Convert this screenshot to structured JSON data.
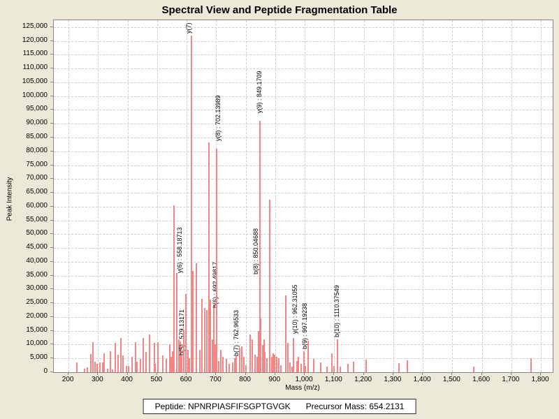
{
  "title": "Spectral View and Peptide Fragmentation Table",
  "footer": {
    "peptide_text": "Peptide: NPNRPIASFIFSGPTGVGK",
    "precursor_text": "Precursor Mass: 654.2131"
  },
  "colors": {
    "background": "#ece9d8",
    "plot_background": "#ffffff",
    "grid": "#cdcdcd",
    "bar": "#f58585",
    "axis_border": "#848484",
    "text": "#000000"
  },
  "chart_data": {
    "type": "bar",
    "title": "Spectral View and Peptide Fragmentation Table",
    "xlabel": "Mass (m/z)",
    "ylabel": "Peak Intensity",
    "xlim": [
      150,
      1840
    ],
    "ylim": [
      0,
      127500
    ],
    "grid": true,
    "x_ticks": {
      "values": [
        200,
        300,
        400,
        500,
        600,
        700,
        800,
        900,
        1000,
        1100,
        1200,
        1300,
        1400,
        1500,
        1600,
        1700,
        1800
      ],
      "labels": [
        "200",
        "300",
        "400",
        "500",
        "600",
        "700",
        "800",
        "900",
        "1,000",
        "1,100",
        "1,200",
        "1,300",
        "1,400",
        "1,500",
        "1,600",
        "1,700",
        "1,800"
      ]
    },
    "y_ticks": {
      "values": [
        0,
        5000,
        10000,
        15000,
        20000,
        25000,
        30000,
        35000,
        40000,
        45000,
        50000,
        55000,
        60000,
        65000,
        70000,
        75000,
        80000,
        85000,
        90000,
        95000,
        100000,
        105000,
        110000,
        115000,
        120000,
        125000
      ],
      "labels": [
        "0",
        "5,000",
        "10,000",
        "15,000",
        "20,000",
        "25,000",
        "30,000",
        "35,000",
        "40,000",
        "45,000",
        "50,000",
        "55,000",
        "60,000",
        "65,000",
        "70,000",
        "75,000",
        "80,000",
        "85,000",
        "90,000",
        "95,000",
        "100,000",
        "105,000",
        "110,000",
        "115,000",
        "120,000",
        "125,000"
      ]
    },
    "annotated_peaks": [
      {
        "mz": 558.18713,
        "intensity": 60500,
        "label": "y(6) : 558.18713"
      },
      {
        "mz": 579.13171,
        "intensity": 11000,
        "label": "b(5) : 579.13171"
      },
      {
        "mz": 615.35,
        "intensity": 122000,
        "label": "y(7) :"
      },
      {
        "mz": 692.49817,
        "intensity": 24500,
        "label": "b(6) : 692.49817"
      },
      {
        "mz": 702.13989,
        "intensity": 81000,
        "label": "y(8) : 702.13989"
      },
      {
        "mz": 762.96533,
        "intensity": 5000,
        "label": "b(7) : 762.96533"
      },
      {
        "mz": 849.1709,
        "intensity": 91000,
        "label": "y(9) : 849.1709"
      },
      {
        "mz": 850.04688,
        "intensity": 19500,
        "label": "b(8) : 850.04688"
      },
      {
        "mz": 962.31055,
        "intensity": 12400,
        "label": "y(10) : 962.31055"
      },
      {
        "mz": 997.19238,
        "intensity": 7600,
        "label": "b(9) : 997.19238"
      },
      {
        "mz": 1110.37549,
        "intensity": 12000,
        "label": "b(10) : 1110.37549"
      }
    ],
    "peaks": [
      {
        "mz": 228,
        "i": 3500
      },
      {
        "mz": 254,
        "i": 1300
      },
      {
        "mz": 264,
        "i": 1800
      },
      {
        "mz": 276,
        "i": 6600
      },
      {
        "mz": 283,
        "i": 11000
      },
      {
        "mz": 290,
        "i": 3800
      },
      {
        "mz": 297,
        "i": 3000
      },
      {
        "mz": 307,
        "i": 3500
      },
      {
        "mz": 316,
        "i": 3500
      },
      {
        "mz": 321,
        "i": 6800
      },
      {
        "mz": 333,
        "i": 1300
      },
      {
        "mz": 342,
        "i": 7600
      },
      {
        "mz": 349,
        "i": 900
      },
      {
        "mz": 359,
        "i": 10600
      },
      {
        "mz": 368,
        "i": 6300
      },
      {
        "mz": 378,
        "i": 12400
      },
      {
        "mz": 385,
        "i": 6000
      },
      {
        "mz": 396,
        "i": 2300
      },
      {
        "mz": 404,
        "i": 2300
      },
      {
        "mz": 415,
        "i": 5600
      },
      {
        "mz": 427,
        "i": 11000
      },
      {
        "mz": 432,
        "i": 3800
      },
      {
        "mz": 444,
        "i": 4800
      },
      {
        "mz": 453,
        "i": 12400
      },
      {
        "mz": 462,
        "i": 7300
      },
      {
        "mz": 475,
        "i": 13700
      },
      {
        "mz": 490,
        "i": 10600
      },
      {
        "mz": 494,
        "i": 3000
      },
      {
        "mz": 503,
        "i": 11000
      },
      {
        "mz": 519,
        "i": 6000
      },
      {
        "mz": 531,
        "i": 4800
      },
      {
        "mz": 543,
        "i": 10000
      },
      {
        "mz": 548,
        "i": 5500
      },
      {
        "mz": 553,
        "i": 7500
      },
      {
        "mz": 558.18713,
        "i": 60500,
        "label": "y(6) : 558.18713",
        "dx": 3,
        "dy": 100
      },
      {
        "mz": 567,
        "i": 36000
      },
      {
        "mz": 574,
        "i": 12000
      },
      {
        "mz": 579.13171,
        "i": 11000,
        "label": "b(5) : 579.13171",
        "dx": -3,
        "dy": 22
      },
      {
        "mz": 584,
        "i": 6000
      },
      {
        "mz": 590,
        "i": 15200
      },
      {
        "mz": 598,
        "i": 28300
      },
      {
        "mz": 605,
        "i": 8000
      },
      {
        "mz": 610,
        "i": 5000
      },
      {
        "mz": 615.35,
        "i": 122000,
        "label": "y(7) :",
        "dx": -9,
        "dy": 0
      },
      {
        "mz": 622,
        "i": 36700
      },
      {
        "mz": 633,
        "i": 39500
      },
      {
        "mz": 645,
        "i": 8000
      },
      {
        "mz": 652,
        "i": 26600
      },
      {
        "mz": 661,
        "i": 23300
      },
      {
        "mz": 668,
        "i": 22500
      },
      {
        "mz": 676,
        "i": 83200
      },
      {
        "mz": 681,
        "i": 26300
      },
      {
        "mz": 687,
        "i": 12000
      },
      {
        "mz": 692.49817,
        "i": 24500,
        "label": "b(6) : 692.49817",
        "dx": -3,
        "dy": 8
      },
      {
        "mz": 697,
        "i": 10000
      },
      {
        "mz": 702.13989,
        "i": 81000,
        "label": "y(8) : 702.13989",
        "dx": -3,
        "dy": -8
      },
      {
        "mz": 709,
        "i": 4000
      },
      {
        "mz": 716,
        "i": 8000
      },
      {
        "mz": 723,
        "i": 5600
      },
      {
        "mz": 735,
        "i": 4800
      },
      {
        "mz": 745,
        "i": 3000
      },
      {
        "mz": 756,
        "i": 3500
      },
      {
        "mz": 762.96533,
        "i": 5000,
        "label": "b(7) : 762.96533",
        "dx": -3,
        "dy": 0
      },
      {
        "mz": 768,
        "i": 6000
      },
      {
        "mz": 780,
        "i": 8900
      },
      {
        "mz": 787,
        "i": 9400
      },
      {
        "mz": 794,
        "i": 5600
      },
      {
        "mz": 801,
        "i": 2500
      },
      {
        "mz": 815,
        "i": 13700
      },
      {
        "mz": 822,
        "i": 11900
      },
      {
        "mz": 832,
        "i": 6300
      },
      {
        "mz": 839,
        "i": 5600
      },
      {
        "mz": 843,
        "i": 15000
      },
      {
        "mz": 849.1709,
        "i": 91000,
        "label": "y(9) : 849.1709",
        "dx": -6,
        "dy": -8
      },
      {
        "mz": 850.04688,
        "i": 19500,
        "label": "b(8) : 850.04688",
        "dx": -12,
        "dy": -60
      },
      {
        "mz": 857,
        "i": 9900
      },
      {
        "mz": 862,
        "i": 11900
      },
      {
        "mz": 866,
        "i": 7300
      },
      {
        "mz": 871,
        "i": 5000
      },
      {
        "mz": 882,
        "i": 62500
      },
      {
        "mz": 888,
        "i": 5600
      },
      {
        "mz": 893,
        "i": 6800
      },
      {
        "mz": 898,
        "i": 6300
      },
      {
        "mz": 905,
        "i": 5600
      },
      {
        "mz": 912,
        "i": 5100
      },
      {
        "mz": 920,
        "i": 2500
      },
      {
        "mz": 936,
        "i": 27900
      },
      {
        "mz": 943,
        "i": 10600
      },
      {
        "mz": 950,
        "i": 3500
      },
      {
        "mz": 956,
        "i": 2000
      },
      {
        "mz": 962.31055,
        "i": 12400,
        "label": "y(10) : 962.31055",
        "dx": -3,
        "dy": -3
      },
      {
        "mz": 974,
        "i": 4000
      },
      {
        "mz": 978,
        "i": 5600
      },
      {
        "mz": 988,
        "i": 3000
      },
      {
        "mz": 997.19238,
        "i": 7600,
        "label": "b(9) : 997.19238",
        "dx": -4,
        "dy": 0
      },
      {
        "mz": 1003,
        "i": 2300
      },
      {
        "mz": 1012,
        "i": 11400
      },
      {
        "mz": 1030,
        "i": 4800
      },
      {
        "mz": 1055,
        "i": 3500
      },
      {
        "mz": 1075,
        "i": 2000
      },
      {
        "mz": 1092,
        "i": 6800
      },
      {
        "mz": 1100,
        "i": 2300
      },
      {
        "mz": 1110.37549,
        "i": 12000,
        "label": "b(10) : 1110.37549",
        "dx": -6,
        "dy": 0
      },
      {
        "mz": 1120,
        "i": 2000
      },
      {
        "mz": 1147,
        "i": 3000
      },
      {
        "mz": 1166,
        "i": 3800
      },
      {
        "mz": 1208,
        "i": 4500
      },
      {
        "mz": 1319,
        "i": 3300
      },
      {
        "mz": 1348,
        "i": 4300
      },
      {
        "mz": 1573,
        "i": 2000
      },
      {
        "mz": 1767,
        "i": 5000
      }
    ]
  }
}
